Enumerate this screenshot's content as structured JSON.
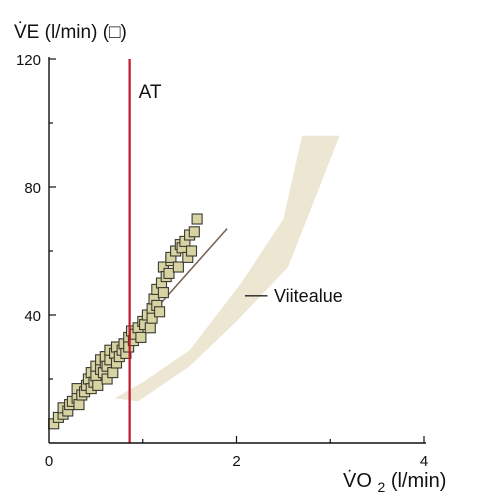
{
  "chart_data": {
    "type": "scatter",
    "title": "",
    "ylabel": "V̇E (l/min)",
    "ylabel_marker": "(□)",
    "xlabel_main": "V̇O",
    "xlabel_sub": "2",
    "xlabel_unit": " (l/min)",
    "xlim": [
      0,
      4
    ],
    "ylim": [
      0,
      120
    ],
    "xticks": [
      0,
      2,
      4
    ],
    "yticks": [
      40,
      80,
      120
    ],
    "xtick_labels": [
      "0",
      "2",
      "4"
    ],
    "ytick_labels": [
      "40",
      "80",
      "120"
    ],
    "grid": false,
    "colors": {
      "marker_fill": "#d8d3a3",
      "marker_stroke": "#3a3a30",
      "at_line": "#c0182a",
      "band": "#ece6d3",
      "fit_line": "#7a6656",
      "axis": "#111111"
    },
    "at_line": {
      "x": 0.86,
      "label": "AT"
    },
    "fit_line": {
      "x": [
        0.05,
        1.9
      ],
      "y": [
        6,
        67
      ]
    },
    "reference_band": {
      "label": "Viitealue",
      "upper": [
        [
          0.95,
          13
        ],
        [
          1.5,
          24
        ],
        [
          2.0,
          38
        ],
        [
          2.55,
          55
        ],
        [
          3.1,
          96
        ],
        [
          3.2,
          96
        ]
      ],
      "lower": [
        [
          0.7,
          14
        ],
        [
          1.0,
          19
        ],
        [
          1.5,
          29
        ],
        [
          2.05,
          50
        ],
        [
          2.5,
          70
        ],
        [
          2.7,
          96
        ]
      ]
    },
    "series": [
      {
        "marker": "square",
        "x": [
          0.05,
          0.1,
          0.15,
          0.15,
          0.2,
          0.22,
          0.25,
          0.3,
          0.3,
          0.32,
          0.35,
          0.38,
          0.4,
          0.42,
          0.45,
          0.45,
          0.48,
          0.5,
          0.5,
          0.52,
          0.55,
          0.55,
          0.58,
          0.6,
          0.6,
          0.62,
          0.62,
          0.65,
          0.65,
          0.68,
          0.7,
          0.72,
          0.72,
          0.75,
          0.78,
          0.8,
          0.82,
          0.85,
          0.85,
          0.88,
          0.9,
          0.92,
          0.95,
          0.98,
          1.0,
          1.02,
          1.05,
          1.08,
          1.1,
          1.1,
          1.12,
          1.15,
          1.15,
          1.18,
          1.2,
          1.22,
          1.22,
          1.25,
          1.28,
          1.3,
          1.3,
          1.35,
          1.38,
          1.4,
          1.42,
          1.45,
          1.48,
          1.5,
          1.52,
          1.55,
          1.58
        ],
        "y": [
          6,
          8,
          9,
          11,
          10,
          12,
          13,
          14,
          17,
          12,
          15,
          16,
          18,
          20,
          17,
          22,
          19,
          21,
          24,
          18,
          23,
          26,
          22,
          25,
          27,
          20,
          24,
          26,
          29,
          22,
          28,
          25,
          30,
          27,
          29,
          31,
          28,
          33,
          30,
          35,
          32,
          34,
          36,
          33,
          38,
          37,
          40,
          36,
          42,
          39,
          45,
          43,
          48,
          41,
          50,
          47,
          55,
          52,
          53,
          57,
          58,
          60,
          55,
          62,
          61,
          63,
          58,
          65,
          60,
          66,
          70
        ]
      }
    ]
  }
}
